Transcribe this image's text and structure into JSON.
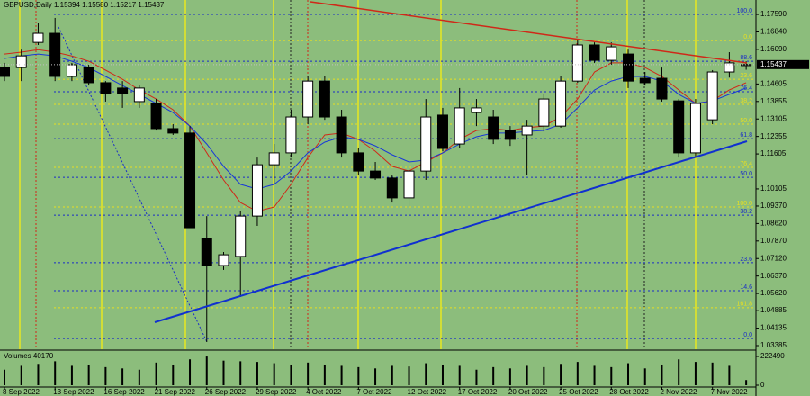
{
  "chart_data": {
    "type": "candlestick",
    "title": "GBPUSD,Daily  1.15394 1.15580 1.15217 1.15437",
    "categories": [
      "8 Sep 2022",
      null,
      null,
      "13 Sep 2022",
      null,
      null,
      "16 Sep 2022",
      null,
      null,
      "21 Sep 2022",
      null,
      null,
      "26 Sep 2022",
      null,
      null,
      "29 Sep 2022",
      null,
      null,
      "4 Oct 2022",
      null,
      null,
      "7 Oct 2022",
      null,
      null,
      "12 Oct 2022",
      null,
      null,
      "17 Oct 2022",
      null,
      null,
      "20 Oct 2022",
      null,
      null,
      "25 Oct 2022",
      null,
      null,
      "28 Oct 2022",
      null,
      null,
      "2 Nov 2022",
      null,
      null,
      "7 Nov 2022",
      null,
      null
    ],
    "open": [
      1.1531,
      1.1531,
      1.1639,
      1.1678,
      1.1493,
      1.1531,
      1.1466,
      1.1443,
      1.1385,
      1.1377,
      1.1269,
      1.125,
      1.0798,
      1.0682,
      1.0721,
      1.0894,
      1.1114,
      1.1165,
      1.1319,
      1.1473,
      1.1319,
      1.1165,
      1.1087,
      1.1057,
      1.0972,
      1.1087,
      1.1327,
      1.1203,
      1.1338,
      1.1319,
      1.1261,
      1.1242,
      1.128,
      1.128,
      1.1473,
      1.1628,
      1.1562,
      1.1589,
      1.1485,
      1.1485,
      1.1388,
      1.1165,
      1.1307,
      1.1512,
      1.15394
    ],
    "high": [
      1.1551,
      1.1608,
      1.1724,
      1.1744,
      1.1551,
      1.1543,
      1.1473,
      1.1473,
      1.1454,
      1.1396,
      1.1288,
      1.128,
      1.0894,
      1.074,
      1.0914,
      1.1145,
      1.1203,
      1.135,
      1.1493,
      1.1493,
      1.135,
      1.1184,
      1.1126,
      1.1068,
      1.1107,
      1.1396,
      1.1358,
      1.1443,
      1.1396,
      1.135,
      1.128,
      1.1307,
      1.1416,
      1.1493,
      1.1647,
      1.1639,
      1.1639,
      1.1608,
      1.1512,
      1.1531,
      1.1396,
      1.1396,
      1.152,
      1.1597,
      1.1558
    ],
    "low": [
      1.1473,
      1.1473,
      1.1628,
      1.1473,
      1.1473,
      1.1454,
      1.1385,
      1.1358,
      1.1358,
      1.1261,
      1.1242,
      1.0844,
      1.0354,
      1.0663,
      1.0547,
      1.0852,
      1.103,
      1.1145,
      1.1288,
      1.1307,
      1.1145,
      1.1068,
      1.1049,
      1.0952,
      1.0933,
      1.1049,
      1.1172,
      1.1184,
      1.128,
      1.1203,
      1.1195,
      1.1068,
      1.1257,
      1.1273,
      1.1466,
      1.1551,
      1.1543,
      1.1443,
      1.1454,
      1.1385,
      1.1145,
      1.1145,
      1.1288,
      1.1488,
      1.15217
    ],
    "close": [
      1.1493,
      1.1581,
      1.1678,
      1.1493,
      1.1543,
      1.1466,
      1.1419,
      1.1419,
      1.1443,
      1.1269,
      1.125,
      1.0844,
      1.0682,
      1.0728,
      1.0894,
      1.1114,
      1.1165,
      1.1319,
      1.1473,
      1.1319,
      1.1165,
      1.1087,
      1.1057,
      1.0972,
      1.1087,
      1.1319,
      1.1184,
      1.1358,
      1.1358,
      1.1223,
      1.1223,
      1.128,
      1.1396,
      1.1473,
      1.1628,
      1.1562,
      1.162,
      1.1473,
      1.1466,
      1.1396,
      1.1165,
      1.1377,
      1.1512,
      1.1551,
      1.15437
    ],
    "up_color": "#ffffff",
    "down_color": "#000000",
    "ylim": [
      1.0323,
      1.1821
    ],
    "yticks": [
      {
        "value": 1.1759,
        "label": "1.17590"
      },
      {
        "value": 1.1684,
        "label": "1.16840"
      },
      {
        "value": 1.1609,
        "label": "1.16090"
      },
      {
        "value": 1.14605,
        "label": "1.14605"
      },
      {
        "value": 1.13855,
        "label": "1.13855"
      },
      {
        "value": 1.13105,
        "label": "1.13105"
      },
      {
        "value": 1.12355,
        "label": "1.12355"
      },
      {
        "value": 1.11605,
        "label": "1.11605"
      },
      {
        "value": 1.10105,
        "label": "1.10105"
      },
      {
        "value": 1.0937,
        "label": "1.09370"
      },
      {
        "value": 1.0862,
        "label": "1.08620"
      },
      {
        "value": 1.0787,
        "label": "1.07870"
      },
      {
        "value": 1.0712,
        "label": "1.07120"
      },
      {
        "value": 1.0637,
        "label": "1.06370"
      },
      {
        "value": 1.0562,
        "label": "1.05620"
      },
      {
        "value": 1.04885,
        "label": "1.04885"
      },
      {
        "value": 1.04135,
        "label": "1.04135"
      },
      {
        "value": 1.03385,
        "label": "1.03385"
      }
    ],
    "last_price": {
      "value": 1.15437,
      "label": "1.15437"
    },
    "overlays": [
      {
        "color": "#d02818",
        "values": [
          1.1589,
          1.1597,
          1.1608,
          1.1597,
          1.1581,
          1.1558,
          1.152,
          1.1481,
          1.1435,
          1.1396,
          1.135,
          1.128,
          1.1165,
          1.1049,
          1.0952,
          1.0914,
          1.0933,
          1.103,
          1.1145,
          1.1242,
          1.125,
          1.1223,
          1.1172,
          1.1107,
          1.1087,
          1.1126,
          1.1165,
          1.1223,
          1.1261,
          1.1269,
          1.1261,
          1.1273,
          1.128,
          1.1319,
          1.1396,
          1.1512,
          1.1551,
          1.1551,
          1.1531,
          1.1493,
          1.1435,
          1.1377,
          1.1388,
          1.1435,
          1.1466
        ]
      },
      {
        "color": "#1838d8",
        "values": [
          1.157,
          1.1581,
          1.1589,
          1.1581,
          1.1558,
          1.1531,
          1.1493,
          1.1454,
          1.1416,
          1.1377,
          1.1338,
          1.128,
          1.1203,
          1.1107,
          1.103,
          1.101,
          1.103,
          1.1087,
          1.1165,
          1.1211,
          1.1234,
          1.1223,
          1.1195,
          1.1157,
          1.1126,
          1.1134,
          1.1165,
          1.1203,
          1.1234,
          1.125,
          1.125,
          1.1257,
          1.1261,
          1.1288,
          1.1358,
          1.1435,
          1.1473,
          1.1493,
          1.1493,
          1.1473,
          1.1416,
          1.1377,
          1.1388,
          1.1416,
          1.1443
        ]
      }
    ],
    "fib_levels": [
      {
        "value": 1.1759,
        "label": "100.0",
        "color": "#1a2cc8"
      },
      {
        "value": 1.1647,
        "label": "0.0",
        "color": "#e8e020"
      },
      {
        "value": 1.1558,
        "label": "88.6",
        "color": "#1a2cc8"
      },
      {
        "value": 1.1481,
        "label": "23.6",
        "color": "#e8e020"
      },
      {
        "value": 1.1427,
        "label": "76.4",
        "color": "#1a2cc8"
      },
      {
        "value": 1.1373,
        "label": "38.2",
        "color": "#e8e020"
      },
      {
        "value": 1.1288,
        "label": "50.0",
        "color": "#e8e020"
      },
      {
        "value": 1.1226,
        "label": "61.8",
        "color": "#1a2cc8"
      },
      {
        "value": 1.1103,
        "label": "76.4",
        "color": "#e8e020"
      },
      {
        "value": 1.106,
        "label": "50.0",
        "color": "#1a2cc8"
      },
      {
        "value": 1.0933,
        "label": "100.0",
        "color": "#e8e020"
      },
      {
        "value": 1.0898,
        "label": "38.2",
        "color": "#1a2cc8"
      },
      {
        "value": 1.0694,
        "label": "23.6",
        "color": "#1a2cc8"
      },
      {
        "value": 1.0574,
        "label": "14.6",
        "color": "#1a2cc8"
      },
      {
        "value": 1.0501,
        "label": "161.8",
        "color": "#e8e020"
      },
      {
        "value": 1.0369,
        "label": "0.0",
        "color": "#1a2cc8"
      }
    ],
    "volume": {
      "label": "Volumes 40170",
      "color": "#000000",
      "values": [
        120000,
        150000,
        165000,
        185000,
        150000,
        160000,
        140000,
        130000,
        120000,
        175000,
        160000,
        200000,
        222000,
        190000,
        185000,
        180000,
        170000,
        160000,
        175000,
        160000,
        150000,
        140000,
        130000,
        150000,
        145000,
        170000,
        160000,
        150000,
        120000,
        140000,
        130000,
        150000,
        140000,
        165000,
        180000,
        150000,
        140000,
        170000,
        130000,
        160000,
        200000,
        180000,
        175000,
        150000,
        40170
      ],
      "ylim": [
        0,
        222490
      ],
      "yticks": [
        222490,
        0
      ]
    }
  }
}
